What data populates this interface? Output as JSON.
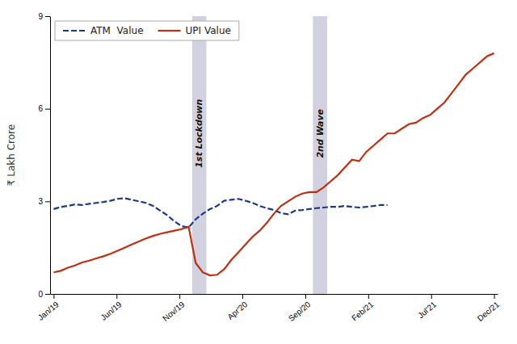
{
  "chart_data": {
    "type": "line",
    "y_label": "₹ Lakh Crore",
    "x": [
      0,
      1,
      2,
      3,
      4,
      5,
      6,
      7,
      8,
      9,
      10,
      11,
      12,
      13,
      14,
      15,
      16,
      17,
      18,
      19,
      20,
      21,
      22,
      23,
      24,
      25,
      26,
      27,
      28,
      29,
      30,
      31,
      32,
      33,
      34,
      35,
      36,
      37,
      38,
      39,
      40,
      41,
      42,
      43,
      44,
      45,
      46,
      47,
      48,
      49,
      50,
      51,
      52,
      53,
      54,
      55,
      56,
      57,
      58,
      59,
      60,
      61,
      62
    ],
    "series": [
      {
        "name": "ATM  Value",
        "color": "#1A3A8C",
        "line_style": "dashed",
        "values": [
          2.75,
          2.82,
          2.85,
          2.9,
          2.88,
          2.92,
          2.95,
          2.98,
          3.02,
          3.08,
          3.1,
          3.05,
          3.0,
          2.95,
          2.85,
          2.7,
          2.55,
          2.35,
          2.2,
          2.15,
          2.42,
          2.6,
          2.75,
          2.85,
          3.02,
          3.05,
          3.08,
          3.02,
          2.95,
          2.85,
          2.78,
          2.72,
          2.62,
          2.58,
          2.7,
          2.72,
          2.75,
          2.78,
          2.8,
          2.82,
          2.82,
          2.85,
          2.82,
          2.8,
          2.82,
          2.85,
          2.88,
          2.88,
          null,
          null,
          null,
          null,
          null,
          null,
          null,
          null,
          null,
          null,
          null,
          null,
          null,
          null,
          null
        ]
      },
      {
        "name": "UPI Value",
        "color": "#C03010",
        "line_style": "solid",
        "values": [
          0.7,
          0.75,
          0.85,
          0.92,
          1.02,
          1.08,
          1.15,
          1.22,
          1.3,
          1.4,
          1.5,
          1.6,
          1.7,
          1.8,
          1.88,
          1.95,
          2.0,
          2.05,
          2.1,
          2.18,
          1.0,
          0.7,
          0.6,
          0.62,
          0.8,
          1.1,
          1.35,
          1.6,
          1.85,
          2.05,
          2.3,
          2.6,
          2.85,
          3.0,
          3.15,
          3.25,
          3.3,
          3.3,
          3.45,
          3.65,
          3.85,
          4.1,
          4.35,
          4.3,
          4.6,
          4.8,
          5.0,
          5.2,
          5.2,
          5.35,
          5.5,
          5.55,
          5.7,
          5.8,
          6.0,
          6.2,
          6.5,
          6.8,
          7.1,
          7.3,
          7.5,
          7.7,
          7.8
        ]
      }
    ],
    "xlim": [
      -0.5,
      62.5
    ],
    "xticks": [
      {
        "value": 0,
        "label": "Jan/19"
      },
      {
        "value": 8.857142857142858,
        "label": "Jun/19"
      },
      {
        "value": 17.714285714285715,
        "label": "Nov/19"
      },
      {
        "value": 26.571428571428573,
        "label": "Apr'20"
      },
      {
        "value": 35.42857142857143,
        "label": "Sep/20"
      },
      {
        "value": 44.285714285714285,
        "label": "Feb/21"
      },
      {
        "value": 53.142857142857146,
        "label": "Jul'21"
      },
      {
        "value": 62,
        "label": "Dec/21"
      }
    ],
    "ylim": [
      0,
      9
    ],
    "yticks": [
      0,
      3,
      6,
      9
    ],
    "grid": false,
    "legend": "upper left",
    "annotations": [
      {
        "text": "1st Lockdown",
        "x_start": 19.5,
        "x_end": 21.5,
        "y": 5.2,
        "color": "#9999BB"
      },
      {
        "text": "2nd Wave",
        "x_start": 36.5,
        "x_end": 38.5,
        "y": 5.2,
        "color": "#9999BB"
      }
    ]
  }
}
